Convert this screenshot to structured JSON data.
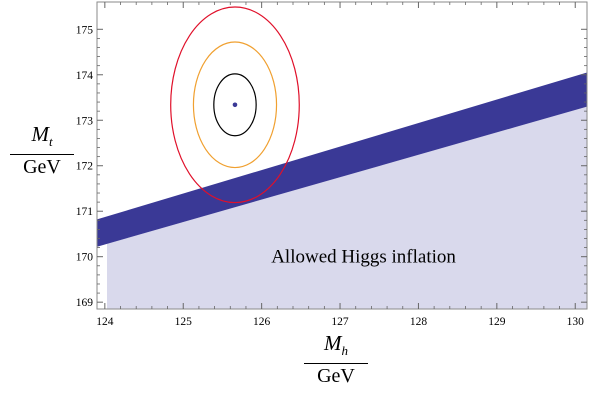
{
  "chart_data": {
    "type": "contour",
    "title": "",
    "xlabel": {
      "numerator": "M",
      "subscript": "h",
      "denominator": "GeV"
    },
    "ylabel": {
      "numerator": "M",
      "subscript": "t",
      "denominator": "GeV"
    },
    "xlim": [
      123.9,
      130.15
    ],
    "ylim": [
      168.85,
      175.6
    ],
    "x_ticks": [
      124,
      125,
      126,
      127,
      128,
      129,
      130
    ],
    "y_ticks": [
      169,
      170,
      171,
      172,
      173,
      174,
      175
    ],
    "allowed_region": {
      "name": "Allowed Higgs inflation",
      "label_at": [
        127.3,
        170.0
      ],
      "color": "#d9d9ec"
    },
    "boundary_band": {
      "color": "#3a3996",
      "lower": [
        [
          123.9,
          170.22
        ],
        [
          130.15,
          173.3
        ]
      ],
      "upper": [
        [
          123.9,
          170.82
        ],
        [
          130.15,
          174.05
        ]
      ]
    },
    "measurement": {
      "center": [
        125.66,
        173.34
      ],
      "point_color": "#3a3996",
      "ellipses": [
        {
          "sigma": 1,
          "color": "#000000",
          "dx": 0.27,
          "dy": 0.68
        },
        {
          "sigma": 2,
          "color": "#f0a030",
          "dx": 0.53,
          "dy": 1.38
        },
        {
          "sigma": 3,
          "color": "#e0102a",
          "dx": 0.82,
          "dy": 2.15
        }
      ]
    }
  }
}
